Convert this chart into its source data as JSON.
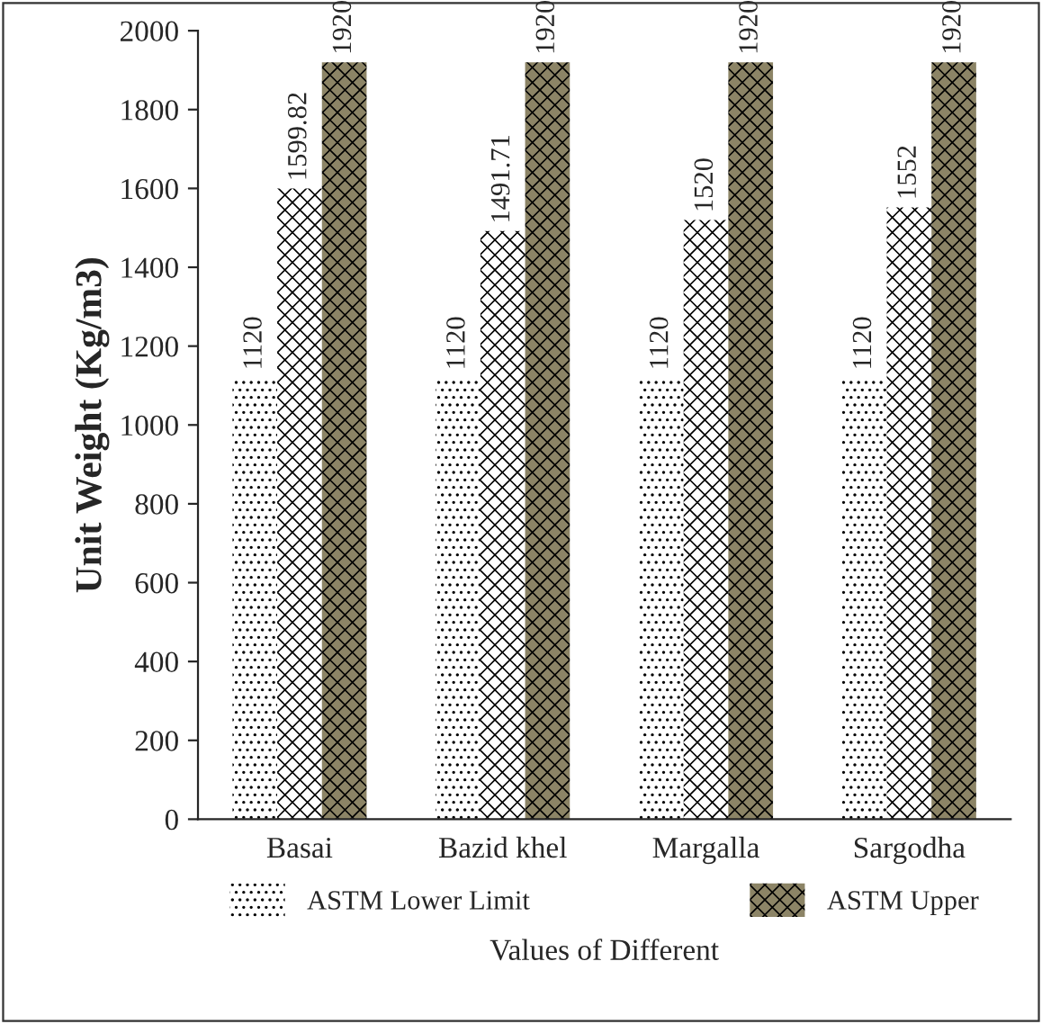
{
  "chart_data": {
    "type": "bar",
    "xlabel": "Values of Different",
    "ylabel": "Unit Weight (Kg/m3)",
    "categories": [
      "Basai",
      "Bazid khel",
      "Margalla",
      "Sargodha"
    ],
    "series": [
      {
        "name": "ASTM Lower Limit",
        "color": "#ffffff",
        "values": [
          1120,
          1120,
          1120,
          1120
        ]
      },
      {
        "color": "#ffffff",
        "values": [
          1599.82,
          1491.71,
          1520,
          1552
        ]
      },
      {
        "name": "ASTM Upper",
        "color": "#8c8466",
        "values": [
          1920,
          1920,
          1920,
          1920
        ]
      }
    ],
    "ylim": [
      0,
      2000
    ],
    "yticks": [
      0,
      200,
      400,
      600,
      800,
      1000,
      1200,
      1400,
      1600,
      1800,
      2000
    ],
    "data_labels": true,
    "legend": "bottom",
    "grid": false
  }
}
